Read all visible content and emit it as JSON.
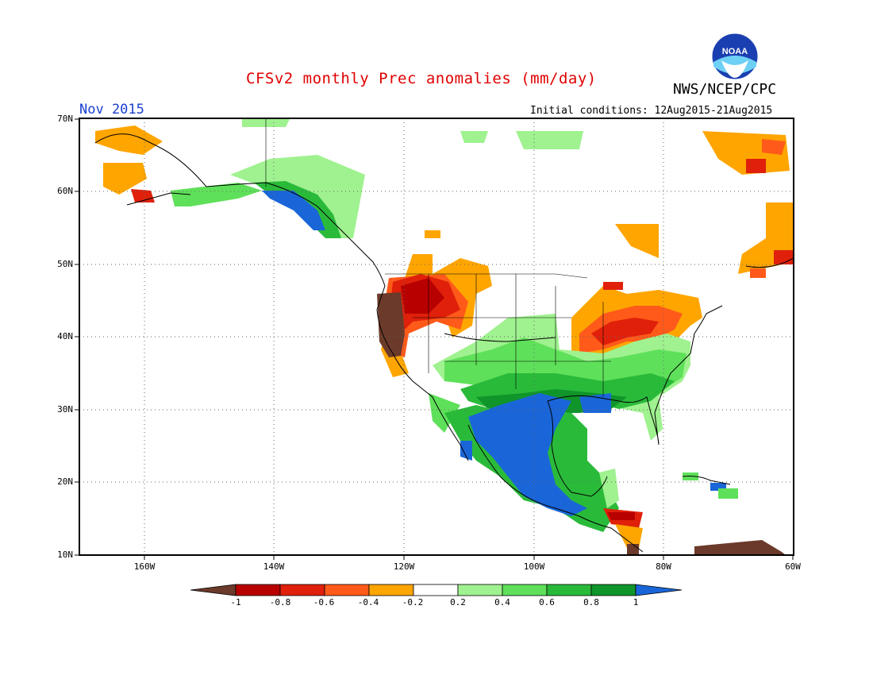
{
  "title": "CFSv2 monthly Prec anomalies (mm/day)",
  "agency": "NWS/NCEP/CPC",
  "logo_text": "NOAA",
  "month_label": "Nov 2015",
  "initial_conditions": "Initial conditions: 12Aug2015-21Aug2015",
  "y_ticks": [
    "70N",
    "60N",
    "50N",
    "40N",
    "30N",
    "20N",
    "10N"
  ],
  "x_ticks": [
    "160W",
    "140W",
    "120W",
    "100W",
    "80W",
    "60W"
  ],
  "colorbar": {
    "labels": [
      "-1",
      "-0.8",
      "-0.6",
      "-0.4",
      "-0.2",
      "0.2",
      "0.4",
      "0.6",
      "0.8",
      "1"
    ],
    "colors": [
      "#6b3a2a",
      "#b80000",
      "#e0200a",
      "#ff5a1a",
      "#ffa500",
      "#ffffff",
      "#9ff28f",
      "#5fe05a",
      "#2aba3a",
      "#10952a",
      "#1a66d8"
    ]
  },
  "legend_colors": {
    "strong_dry": "#6b3a2a",
    "dry_08": "#b80000",
    "dry_06": "#e0200a",
    "dry_04": "#ff5a1a",
    "dry_02": "#ffa500",
    "wet_02": "#9ff28f",
    "wet_04": "#5fe05a",
    "wet_06": "#2aba3a",
    "wet_08": "#10952a",
    "strong_wet": "#1a66d8"
  }
}
